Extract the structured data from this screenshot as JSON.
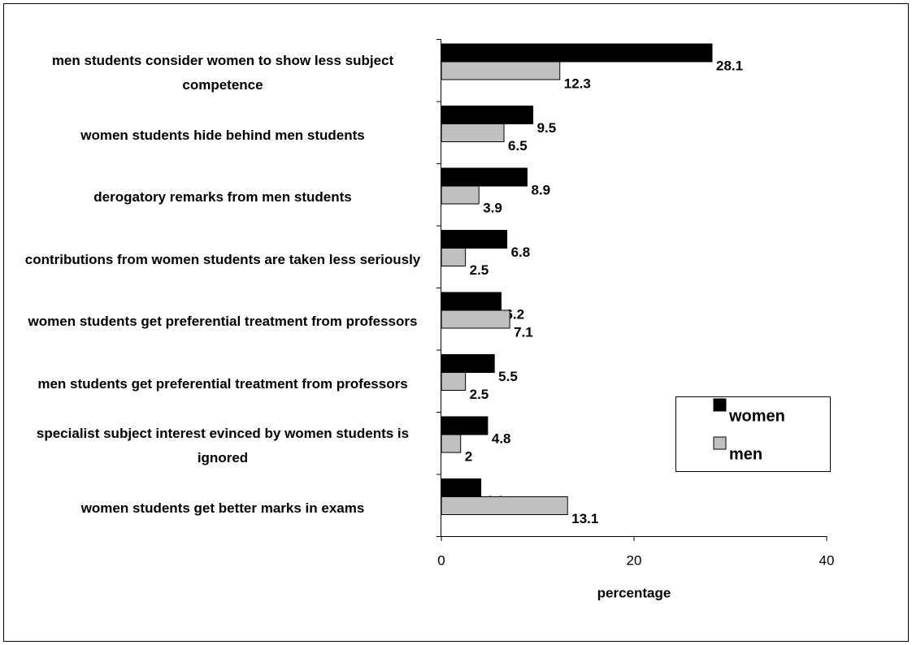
{
  "chart_data": {
    "type": "bar",
    "orientation": "horizontal",
    "categories": [
      "men students consider women to show less subject competence",
      "women students hide behind men students",
      "derogatory remarks from men students",
      "contributions from women students are taken less seriously",
      "women students get preferential treatment from professors",
      "men students get preferential treatment from professors",
      "specialist subject interest evinced by women students is ignored",
      "women students get better marks in exams"
    ],
    "series": [
      {
        "name": "women",
        "color": "#000000",
        "values": [
          28.1,
          9.5,
          8.9,
          6.8,
          6.2,
          5.5,
          4.8,
          4.1
        ]
      },
      {
        "name": "men",
        "color": "#c0c0c0",
        "values": [
          12.3,
          6.5,
          3.9,
          2.5,
          7.1,
          2.5,
          2,
          13.1
        ]
      }
    ],
    "xlabel": "percentage",
    "xlim": [
      0,
      40
    ],
    "xticks": [
      0,
      20,
      40
    ],
    "grid": false,
    "legend": "right"
  }
}
